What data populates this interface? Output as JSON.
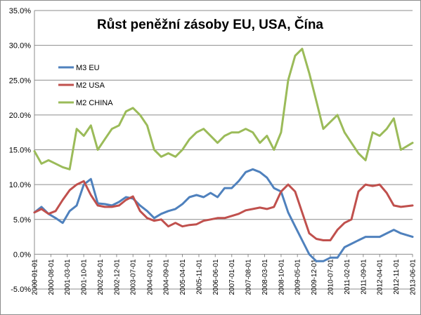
{
  "chart_data": {
    "type": "line",
    "title": "Růst peněžní zásoby EU, USA, Čína",
    "xlabel": "",
    "ylabel": "",
    "ylim": [
      -0.05,
      0.35
    ],
    "yticks": [
      "-5.0%",
      "0.0%",
      "5.0%",
      "10.0%",
      "15.0%",
      "20.0%",
      "25.0%",
      "30.0%",
      "35.0%"
    ],
    "xticks": [
      "2000-01-01",
      "2000-08-01",
      "2001-03-01",
      "2001-10-01",
      "2002-05-01",
      "2002-12-01",
      "2003-07-01",
      "2004-02-01",
      "2004-09-01",
      "2005-04-01",
      "2005-11-01",
      "2006-06-01",
      "2007-01-01",
      "2007-08-01",
      "2008-03-01",
      "2008-10-01",
      "2009-05-01",
      "2009-12-01",
      "2010-07-01",
      "2011-02-01",
      "2011-09-01",
      "2012-04-01",
      "2012-11-01",
      "2013-06-01"
    ],
    "grid": true,
    "legend_position": "top-left",
    "series": [
      {
        "name": "M3 EU",
        "color": "#4f81bd",
        "x": [
          "2000-01",
          "2000-04",
          "2000-07",
          "2000-10",
          "2001-01",
          "2001-04",
          "2001-07",
          "2001-10",
          "2002-01",
          "2002-04",
          "2002-07",
          "2002-10",
          "2003-01",
          "2003-04",
          "2003-07",
          "2003-10",
          "2004-01",
          "2004-04",
          "2004-07",
          "2004-10",
          "2005-01",
          "2005-04",
          "2005-07",
          "2005-10",
          "2006-01",
          "2006-04",
          "2006-07",
          "2006-10",
          "2007-01",
          "2007-04",
          "2007-07",
          "2007-10",
          "2008-01",
          "2008-04",
          "2008-07",
          "2008-10",
          "2009-01",
          "2009-04",
          "2009-07",
          "2009-10",
          "2010-01",
          "2010-04",
          "2010-07",
          "2010-10",
          "2011-01",
          "2011-04",
          "2011-07",
          "2011-10",
          "2012-01",
          "2012-04",
          "2012-07",
          "2012-10",
          "2013-01",
          "2013-06"
        ],
        "values": [
          0.06,
          0.068,
          0.058,
          0.052,
          0.045,
          0.062,
          0.07,
          0.1,
          0.108,
          0.073,
          0.072,
          0.07,
          0.075,
          0.082,
          0.08,
          0.07,
          0.062,
          0.052,
          0.058,
          0.062,
          0.065,
          0.072,
          0.082,
          0.085,
          0.082,
          0.088,
          0.082,
          0.095,
          0.095,
          0.105,
          0.118,
          0.122,
          0.118,
          0.11,
          0.095,
          0.09,
          0.06,
          0.04,
          0.02,
          0.0,
          -0.01,
          -0.01,
          -0.005,
          -0.005,
          0.01,
          0.015,
          0.02,
          0.025,
          0.025,
          0.025,
          0.03,
          0.035,
          0.03,
          0.025
        ]
      },
      {
        "name": "M2 USA",
        "color": "#c0504d",
        "x": [
          "2000-01",
          "2000-04",
          "2000-07",
          "2000-10",
          "2001-01",
          "2001-04",
          "2001-07",
          "2001-10",
          "2002-01",
          "2002-04",
          "2002-07",
          "2002-10",
          "2003-01",
          "2003-04",
          "2003-07",
          "2003-10",
          "2004-01",
          "2004-04",
          "2004-07",
          "2004-10",
          "2005-01",
          "2005-04",
          "2005-07",
          "2005-10",
          "2006-01",
          "2006-04",
          "2006-07",
          "2006-10",
          "2007-01",
          "2007-04",
          "2007-07",
          "2007-10",
          "2008-01",
          "2008-04",
          "2008-07",
          "2008-10",
          "2009-01",
          "2009-04",
          "2009-07",
          "2009-10",
          "2010-01",
          "2010-04",
          "2010-07",
          "2010-10",
          "2011-01",
          "2011-04",
          "2011-07",
          "2011-10",
          "2012-01",
          "2012-04",
          "2012-07",
          "2012-10",
          "2013-01",
          "2013-06"
        ],
        "values": [
          0.06,
          0.065,
          0.058,
          0.062,
          0.078,
          0.092,
          0.1,
          0.105,
          0.085,
          0.07,
          0.068,
          0.068,
          0.07,
          0.078,
          0.083,
          0.062,
          0.052,
          0.048,
          0.05,
          0.04,
          0.045,
          0.04,
          0.042,
          0.043,
          0.048,
          0.05,
          0.052,
          0.052,
          0.055,
          0.058,
          0.063,
          0.065,
          0.067,
          0.065,
          0.068,
          0.09,
          0.1,
          0.09,
          0.06,
          0.03,
          0.022,
          0.02,
          0.02,
          0.035,
          0.045,
          0.05,
          0.09,
          0.1,
          0.098,
          0.1,
          0.088,
          0.07,
          0.068,
          0.07
        ]
      },
      {
        "name": "M2 CHINA",
        "color": "#9bbb59",
        "x": [
          "2000-01",
          "2000-04",
          "2000-07",
          "2000-10",
          "2001-01",
          "2001-04",
          "2001-07",
          "2001-10",
          "2002-01",
          "2002-04",
          "2002-07",
          "2002-10",
          "2003-01",
          "2003-04",
          "2003-07",
          "2003-10",
          "2004-01",
          "2004-04",
          "2004-07",
          "2004-10",
          "2005-01",
          "2005-04",
          "2005-07",
          "2005-10",
          "2006-01",
          "2006-04",
          "2006-07",
          "2006-10",
          "2007-01",
          "2007-04",
          "2007-07",
          "2007-10",
          "2008-01",
          "2008-04",
          "2008-07",
          "2008-10",
          "2009-01",
          "2009-04",
          "2009-07",
          "2009-10",
          "2010-01",
          "2010-04",
          "2010-07",
          "2010-10",
          "2011-01",
          "2011-04",
          "2011-07",
          "2011-10",
          "2012-01",
          "2012-04",
          "2012-07",
          "2012-10",
          "2013-01",
          "2013-06"
        ],
        "values": [
          0.148,
          0.13,
          0.135,
          0.13,
          0.125,
          0.122,
          0.18,
          0.17,
          0.185,
          0.15,
          0.165,
          0.18,
          0.185,
          0.205,
          0.21,
          0.2,
          0.185,
          0.15,
          0.14,
          0.145,
          0.14,
          0.15,
          0.165,
          0.175,
          0.18,
          0.17,
          0.16,
          0.17,
          0.175,
          0.175,
          0.18,
          0.175,
          0.16,
          0.17,
          0.15,
          0.175,
          0.25,
          0.285,
          0.295,
          0.26,
          0.22,
          0.18,
          0.19,
          0.2,
          0.175,
          0.16,
          0.145,
          0.135,
          0.175,
          0.17,
          0.18,
          0.195,
          0.15,
          0.16
        ]
      }
    ]
  }
}
